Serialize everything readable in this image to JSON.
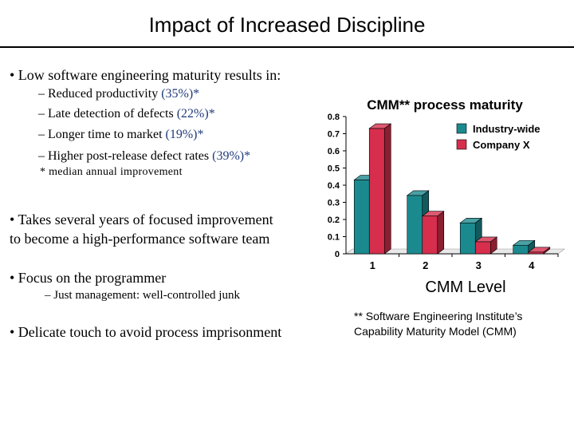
{
  "slide": {
    "title": "Impact of Increased Discipline",
    "bullet1": "• Low software engineering maturity results in:",
    "sub_items": [
      {
        "text": "– Reduced productivity ",
        "pct": "(35%)*"
      },
      {
        "text": "– Late detection of defects ",
        "pct": "(22%)*"
      },
      {
        "text": "– Longer time to market ",
        "pct": "(19%)*"
      },
      {
        "text": "– Higher post-release defect rates ",
        "pct": "(39%)*"
      }
    ],
    "median_note": "* median annual improvement",
    "bullet2_line1": "• Takes several years of focused improvement",
    "bullet2_line2": "to become a high-performance software team",
    "bullet3": "• Focus on the programmer",
    "bullet3_sub": "–  Just management: well-controlled junk",
    "bullet4": "• Delicate touch to avoid process imprisonment",
    "footnote_line1": "** Software Engineering Institute’s",
    "footnote_line2": "Capability Maturity Model (CMM)"
  },
  "chart_data": {
    "type": "bar",
    "title": "CMM** process maturity",
    "xlabel": "CMM Level",
    "ylabel": "",
    "categories": [
      "1",
      "2",
      "3",
      "4"
    ],
    "series": [
      {
        "name": "Industry-wide",
        "values": [
          0.43,
          0.34,
          0.18,
          0.05
        ],
        "color": "#1b8a8f"
      },
      {
        "name": "Company X",
        "values": [
          0.73,
          0.22,
          0.07,
          0.01
        ],
        "color": "#d62e4c"
      }
    ],
    "ylim": [
      0,
      0.8
    ],
    "yticks": [
      "0",
      "0.1",
      "0.2",
      "0.3",
      "0.4",
      "0.5",
      "0.6",
      "0.7",
      "0.8"
    ],
    "grid": false,
    "legend_position": "top-right",
    "bar_style": "3d"
  }
}
